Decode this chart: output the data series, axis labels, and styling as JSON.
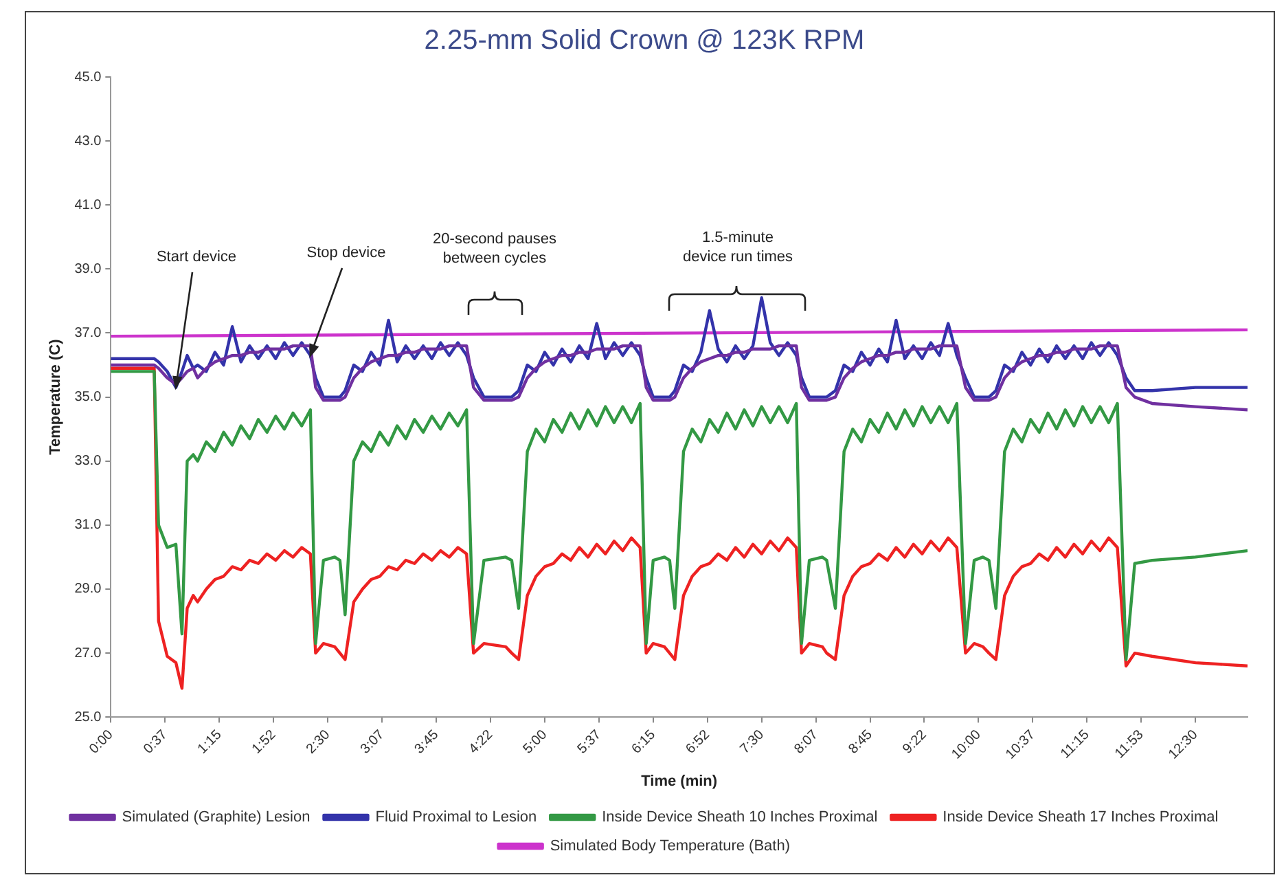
{
  "chart_data": {
    "type": "line",
    "title": "2.25-mm Solid Crown @ 123K RPM",
    "xlabel": "Time (min)",
    "ylabel": "Temperature (C)",
    "x": [
      0,
      0.5,
      0.55,
      0.65,
      0.75,
      0.82,
      0.88,
      0.95,
      1.0,
      1.1,
      1.2,
      1.3,
      1.4,
      1.5,
      1.6,
      1.7,
      1.8,
      1.9,
      2.0,
      2.1,
      2.2,
      2.3,
      2.36,
      2.45,
      2.58,
      2.64,
      2.7,
      2.8,
      2.9,
      3.0,
      3.1,
      3.2,
      3.3,
      3.4,
      3.5,
      3.6,
      3.7,
      3.8,
      3.9,
      4.0,
      4.1,
      4.18,
      4.3,
      4.55,
      4.62,
      4.7,
      4.8,
      4.9,
      5.0,
      5.1,
      5.2,
      5.3,
      5.4,
      5.5,
      5.6,
      5.7,
      5.8,
      5.9,
      6.0,
      6.1,
      6.17,
      6.25,
      6.38,
      6.44,
      6.5,
      6.6,
      6.7,
      6.8,
      6.9,
      7.0,
      7.1,
      7.2,
      7.3,
      7.4,
      7.5,
      7.6,
      7.7,
      7.8,
      7.9,
      7.96,
      8.05,
      8.2,
      8.25,
      8.35,
      8.45,
      8.55,
      8.65,
      8.75,
      8.85,
      8.95,
      9.05,
      9.15,
      9.25,
      9.35,
      9.45,
      9.55,
      9.65,
      9.75,
      9.85,
      9.95,
      10.05,
      10.12,
      10.2,
      10.3,
      10.4,
      10.5,
      10.6,
      10.7,
      10.8,
      10.9,
      11.0,
      11.1,
      11.2,
      11.3,
      11.4,
      11.5,
      11.6,
      11.7,
      11.8,
      12.0,
      12.5,
      13.1
    ],
    "series": [
      {
        "name": "Simulated (Graphite) Lesion",
        "color": "#7030a0",
        "values": [
          36.0,
          36.0,
          35.9,
          35.6,
          35.4,
          35.6,
          35.8,
          35.9,
          35.6,
          35.9,
          36.1,
          36.2,
          36.3,
          36.3,
          36.4,
          36.4,
          36.5,
          36.5,
          36.5,
          36.6,
          36.6,
          36.6,
          35.3,
          34.9,
          34.9,
          34.9,
          35.0,
          35.6,
          35.9,
          36.1,
          36.2,
          36.3,
          36.3,
          36.4,
          36.4,
          36.5,
          36.5,
          36.5,
          36.6,
          36.6,
          36.6,
          35.3,
          34.9,
          34.9,
          34.9,
          35.0,
          35.6,
          35.9,
          36.1,
          36.2,
          36.3,
          36.3,
          36.4,
          36.4,
          36.5,
          36.5,
          36.5,
          36.6,
          36.6,
          36.6,
          35.3,
          34.9,
          34.9,
          34.9,
          35.0,
          35.6,
          35.9,
          36.1,
          36.2,
          36.3,
          36.3,
          36.4,
          36.4,
          36.5,
          36.5,
          36.5,
          36.6,
          36.6,
          36.6,
          35.3,
          34.9,
          34.9,
          34.9,
          35.0,
          35.6,
          35.9,
          36.1,
          36.2,
          36.3,
          36.3,
          36.4,
          36.4,
          36.5,
          36.5,
          36.5,
          36.6,
          36.6,
          36.6,
          35.3,
          34.9,
          34.9,
          34.9,
          35.0,
          35.6,
          35.9,
          36.1,
          36.2,
          36.3,
          36.3,
          36.4,
          36.4,
          36.5,
          36.5,
          36.5,
          36.6,
          36.6,
          36.6,
          35.3,
          35.0,
          34.8,
          34.7,
          34.6
        ]
      },
      {
        "name": "Fluid Proximal to Lesion",
        "color": "#3333aa",
        "values": [
          36.2,
          36.2,
          36.1,
          35.8,
          35.3,
          35.8,
          36.3,
          35.9,
          36.0,
          35.8,
          36.4,
          36.0,
          37.2,
          36.1,
          36.6,
          36.2,
          36.6,
          36.2,
          36.7,
          36.3,
          36.7,
          36.3,
          35.6,
          35.0,
          35.0,
          35.0,
          35.2,
          36.0,
          35.8,
          36.4,
          36.0,
          37.4,
          36.1,
          36.6,
          36.2,
          36.6,
          36.2,
          36.7,
          36.3,
          36.7,
          36.3,
          35.6,
          35.0,
          35.0,
          35.0,
          35.2,
          36.0,
          35.8,
          36.4,
          36.0,
          36.5,
          36.1,
          36.6,
          36.2,
          37.3,
          36.2,
          36.7,
          36.3,
          36.7,
          36.3,
          35.6,
          35.0,
          35.0,
          35.0,
          35.2,
          36.0,
          35.8,
          36.4,
          37.7,
          36.5,
          36.1,
          36.6,
          36.2,
          36.6,
          38.1,
          36.7,
          36.3,
          36.7,
          36.3,
          35.6,
          35.0,
          35.0,
          35.0,
          35.2,
          36.0,
          35.8,
          36.4,
          36.0,
          36.5,
          36.1,
          37.4,
          36.2,
          36.6,
          36.2,
          36.7,
          36.3,
          37.3,
          36.3,
          35.6,
          35.0,
          35.0,
          35.0,
          35.2,
          36.0,
          35.8,
          36.4,
          36.0,
          36.5,
          36.1,
          36.6,
          36.2,
          36.6,
          36.2,
          36.7,
          36.3,
          36.7,
          36.3,
          35.6,
          35.2,
          35.2,
          35.3,
          35.3
        ]
      },
      {
        "name": "Inside Device Sheath 10 Inches Proximal",
        "color": "#339944",
        "values": [
          35.8,
          35.8,
          31.0,
          30.3,
          30.4,
          27.6,
          33.0,
          33.2,
          33.0,
          33.6,
          33.3,
          33.9,
          33.5,
          34.1,
          33.7,
          34.3,
          33.9,
          34.4,
          34.0,
          34.5,
          34.1,
          34.6,
          27.3,
          29.9,
          30.0,
          29.9,
          28.2,
          33.0,
          33.6,
          33.3,
          33.9,
          33.5,
          34.1,
          33.7,
          34.3,
          33.9,
          34.4,
          34.0,
          34.5,
          34.1,
          34.6,
          27.3,
          29.9,
          30.0,
          29.9,
          28.4,
          33.3,
          34.0,
          33.6,
          34.3,
          33.9,
          34.5,
          34.0,
          34.6,
          34.1,
          34.7,
          34.2,
          34.7,
          34.2,
          34.8,
          27.3,
          29.9,
          30.0,
          29.9,
          28.4,
          33.3,
          34.0,
          33.6,
          34.3,
          33.9,
          34.5,
          34.0,
          34.6,
          34.1,
          34.7,
          34.2,
          34.7,
          34.2,
          34.8,
          27.3,
          29.9,
          30.0,
          29.9,
          28.4,
          33.3,
          34.0,
          33.6,
          34.3,
          33.9,
          34.5,
          34.0,
          34.6,
          34.1,
          34.7,
          34.2,
          34.7,
          34.2,
          34.8,
          27.3,
          29.9,
          30.0,
          29.9,
          28.4,
          33.3,
          34.0,
          33.6,
          34.3,
          33.9,
          34.5,
          34.0,
          34.6,
          34.1,
          34.7,
          34.2,
          34.7,
          34.2,
          34.8,
          26.8,
          29.8,
          29.9,
          30.0,
          30.2
        ]
      },
      {
        "name": "Inside Device Sheath 17 Inches Proximal",
        "color": "#ee2222",
        "values": [
          35.9,
          35.9,
          28.0,
          26.9,
          26.7,
          25.9,
          28.4,
          28.8,
          28.6,
          29.0,
          29.3,
          29.4,
          29.7,
          29.6,
          29.9,
          29.8,
          30.1,
          29.9,
          30.2,
          30.0,
          30.3,
          30.1,
          27.0,
          27.3,
          27.2,
          27.0,
          26.8,
          28.6,
          29.0,
          29.3,
          29.4,
          29.7,
          29.6,
          29.9,
          29.8,
          30.1,
          29.9,
          30.2,
          30.0,
          30.3,
          30.1,
          27.0,
          27.3,
          27.2,
          27.0,
          26.8,
          28.8,
          29.4,
          29.7,
          29.8,
          30.1,
          29.9,
          30.3,
          30.0,
          30.4,
          30.1,
          30.5,
          30.2,
          30.6,
          30.3,
          27.0,
          27.3,
          27.2,
          27.0,
          26.8,
          28.8,
          29.4,
          29.7,
          29.8,
          30.1,
          29.9,
          30.3,
          30.0,
          30.4,
          30.1,
          30.5,
          30.2,
          30.6,
          30.3,
          27.0,
          27.3,
          27.2,
          27.0,
          26.8,
          28.8,
          29.4,
          29.7,
          29.8,
          30.1,
          29.9,
          30.3,
          30.0,
          30.4,
          30.1,
          30.5,
          30.2,
          30.6,
          30.3,
          27.0,
          27.3,
          27.2,
          27.0,
          26.8,
          28.8,
          29.4,
          29.7,
          29.8,
          30.1,
          29.9,
          30.3,
          30.0,
          30.4,
          30.1,
          30.5,
          30.2,
          30.6,
          30.3,
          26.6,
          27.0,
          26.9,
          26.7,
          26.6
        ]
      },
      {
        "name": "Simulated Body Temperature (Bath)",
        "color": "#cc33cc",
        "x": [
          0,
          13.1
        ],
        "values": [
          36.9,
          37.1
        ]
      }
    ],
    "xlim": [
      0,
      13.1
    ],
    "xticks": [
      {
        "value": 0,
        "label": "0:00"
      },
      {
        "value": 0.625,
        "label": "0:37"
      },
      {
        "value": 1.25,
        "label": "1:15"
      },
      {
        "value": 1.875,
        "label": "1:52"
      },
      {
        "value": 2.5,
        "label": "2:30"
      },
      {
        "value": 3.125,
        "label": "3:07"
      },
      {
        "value": 3.75,
        "label": "3:45"
      },
      {
        "value": 4.375,
        "label": "4:22"
      },
      {
        "value": 5,
        "label": "5:00"
      },
      {
        "value": 5.625,
        "label": "5:37"
      },
      {
        "value": 6.25,
        "label": "6:15"
      },
      {
        "value": 6.875,
        "label": "6:52"
      },
      {
        "value": 7.5,
        "label": "7:30"
      },
      {
        "value": 8.125,
        "label": "8:07"
      },
      {
        "value": 8.75,
        "label": "8:45"
      },
      {
        "value": 9.375,
        "label": "9:22"
      },
      {
        "value": 10,
        "label": "10:00"
      },
      {
        "value": 10.625,
        "label": "10:37"
      },
      {
        "value": 11.25,
        "label": "11:15"
      },
      {
        "value": 11.875,
        "label": "11:53"
      },
      {
        "value": 12.5,
        "label": "12:30"
      }
    ],
    "ylim": [
      25,
      45
    ],
    "yticks": [
      {
        "value": 25,
        "label": "25.0"
      },
      {
        "value": 27,
        "label": "27.0"
      },
      {
        "value": 29,
        "label": "29.0"
      },
      {
        "value": 31,
        "label": "31.0"
      },
      {
        "value": 33,
        "label": "33.0"
      },
      {
        "value": 35,
        "label": "35.0"
      },
      {
        "value": 37,
        "label": "37.0"
      },
      {
        "value": 39,
        "label": "39.0"
      },
      {
        "value": 41,
        "label": "41.0"
      },
      {
        "value": 43,
        "label": "43.0"
      },
      {
        "value": 45,
        "label": "45.0"
      }
    ],
    "annotations": [
      {
        "text": "Start device",
        "x": 0.75,
        "y": 35.3
      },
      {
        "text": "Stop device",
        "x": 2.3,
        "y": 36.3
      },
      "20-second pauses\nbetween cycles",
      "1.5-minute\ndevice run times"
    ],
    "grid": false,
    "legend": "bottom"
  }
}
